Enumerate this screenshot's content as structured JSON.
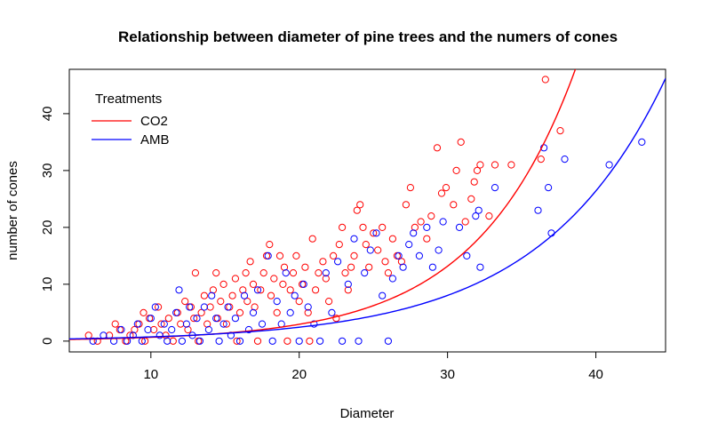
{
  "chart_data": {
    "type": "scatter",
    "title": "Relationship between diameter of pine trees and the numers of cones",
    "xlabel": "Diameter",
    "ylabel": "number of cones",
    "xlim": [
      4.5,
      44.7
    ],
    "ylim": [
      -1.9,
      47.8
    ],
    "xticks": [
      10,
      20,
      30,
      40
    ],
    "yticks": [
      0,
      10,
      20,
      30,
      40
    ],
    "legend": {
      "title": "Treatments",
      "position": "top-left",
      "entries": [
        {
          "label": "CO2",
          "color": "#ff0000"
        },
        {
          "label": "AMB",
          "color": "#0000ff"
        }
      ]
    },
    "grid": false,
    "series": [
      {
        "name": "CO2",
        "color": "#ff0000",
        "marker": "open-circle",
        "points": [
          [
            5.8,
            1
          ],
          [
            6.4,
            0
          ],
          [
            7.2,
            1
          ],
          [
            7.6,
            3
          ],
          [
            7.9,
            2
          ],
          [
            8.3,
            0
          ],
          [
            8.6,
            1
          ],
          [
            8.9,
            2
          ],
          [
            9.2,
            3
          ],
          [
            9.5,
            5
          ],
          [
            9.6,
            0
          ],
          [
            9.9,
            4
          ],
          [
            10.2,
            2
          ],
          [
            10.5,
            6
          ],
          [
            10.7,
            3
          ],
          [
            11.0,
            1
          ],
          [
            11.2,
            4
          ],
          [
            11.5,
            0
          ],
          [
            11.8,
            5
          ],
          [
            12.0,
            3
          ],
          [
            12.3,
            7
          ],
          [
            12.5,
            2
          ],
          [
            12.7,
            6
          ],
          [
            12.9,
            4
          ],
          [
            13.0,
            12
          ],
          [
            13.2,
            0
          ],
          [
            13.4,
            5
          ],
          [
            13.6,
            8
          ],
          [
            13.8,
            3
          ],
          [
            14.0,
            6
          ],
          [
            14.2,
            9
          ],
          [
            14.4,
            12
          ],
          [
            14.5,
            4
          ],
          [
            14.7,
            7
          ],
          [
            14.9,
            10
          ],
          [
            15.1,
            3
          ],
          [
            15.3,
            6
          ],
          [
            15.5,
            8
          ],
          [
            15.7,
            11
          ],
          [
            15.8,
            0
          ],
          [
            16.0,
            5
          ],
          [
            16.2,
            9
          ],
          [
            16.4,
            12
          ],
          [
            16.5,
            7
          ],
          [
            16.7,
            14
          ],
          [
            16.9,
            10
          ],
          [
            17.0,
            6
          ],
          [
            17.2,
            0
          ],
          [
            17.4,
            9
          ],
          [
            17.6,
            12
          ],
          [
            17.8,
            15
          ],
          [
            18.0,
            17
          ],
          [
            18.1,
            8
          ],
          [
            18.3,
            11
          ],
          [
            18.5,
            5
          ],
          [
            18.7,
            15
          ],
          [
            18.9,
            10
          ],
          [
            19.0,
            13
          ],
          [
            19.2,
            0
          ],
          [
            19.4,
            9
          ],
          [
            19.6,
            12
          ],
          [
            19.8,
            15
          ],
          [
            20.0,
            7
          ],
          [
            20.2,
            10
          ],
          [
            20.4,
            13
          ],
          [
            20.6,
            5
          ],
          [
            20.7,
            0
          ],
          [
            20.9,
            18
          ],
          [
            21.1,
            9
          ],
          [
            21.3,
            12
          ],
          [
            21.6,
            14
          ],
          [
            21.8,
            11
          ],
          [
            22.0,
            7
          ],
          [
            22.3,
            15
          ],
          [
            22.5,
            4
          ],
          [
            22.7,
            17
          ],
          [
            22.9,
            20
          ],
          [
            23.1,
            12
          ],
          [
            23.3,
            9
          ],
          [
            23.5,
            13
          ],
          [
            23.7,
            15
          ],
          [
            23.9,
            23
          ],
          [
            24.1,
            24
          ],
          [
            24.3,
            20
          ],
          [
            24.5,
            17
          ],
          [
            24.7,
            13
          ],
          [
            25.0,
            19
          ],
          [
            25.3,
            16
          ],
          [
            25.6,
            20
          ],
          [
            25.8,
            14
          ],
          [
            26.0,
            12
          ],
          [
            26.3,
            18
          ],
          [
            26.6,
            15
          ],
          [
            26.9,
            14
          ],
          [
            27.2,
            24
          ],
          [
            27.5,
            27
          ],
          [
            27.8,
            20
          ],
          [
            28.2,
            21
          ],
          [
            28.6,
            18
          ],
          [
            28.9,
            22
          ],
          [
            29.3,
            34
          ],
          [
            29.6,
            26
          ],
          [
            29.9,
            27
          ],
          [
            30.4,
            24
          ],
          [
            30.6,
            30
          ],
          [
            30.9,
            35
          ],
          [
            31.2,
            21
          ],
          [
            31.6,
            25
          ],
          [
            31.8,
            28
          ],
          [
            32.0,
            30
          ],
          [
            32.2,
            31
          ],
          [
            32.8,
            22
          ],
          [
            33.2,
            31
          ],
          [
            34.3,
            31
          ],
          [
            36.3,
            32
          ],
          [
            36.6,
            46
          ],
          [
            37.6,
            37
          ]
        ]
      },
      {
        "name": "AMB",
        "color": "#0000ff",
        "marker": "open-circle",
        "points": [
          [
            6.1,
            0
          ],
          [
            6.8,
            1
          ],
          [
            7.5,
            0
          ],
          [
            8.0,
            2
          ],
          [
            8.4,
            0
          ],
          [
            8.8,
            1
          ],
          [
            9.1,
            3
          ],
          [
            9.4,
            0
          ],
          [
            9.8,
            2
          ],
          [
            10.0,
            4
          ],
          [
            10.3,
            6
          ],
          [
            10.6,
            1
          ],
          [
            10.9,
            3
          ],
          [
            11.1,
            0
          ],
          [
            11.4,
            2
          ],
          [
            11.7,
            5
          ],
          [
            11.9,
            9
          ],
          [
            12.1,
            0
          ],
          [
            12.4,
            3
          ],
          [
            12.6,
            6
          ],
          [
            12.8,
            1
          ],
          [
            13.1,
            4
          ],
          [
            13.3,
            0
          ],
          [
            13.6,
            6
          ],
          [
            13.9,
            2
          ],
          [
            14.1,
            8
          ],
          [
            14.4,
            4
          ],
          [
            14.6,
            0
          ],
          [
            14.9,
            3
          ],
          [
            15.2,
            6
          ],
          [
            15.4,
            1
          ],
          [
            15.7,
            4
          ],
          [
            16.0,
            0
          ],
          [
            16.3,
            8
          ],
          [
            16.6,
            2
          ],
          [
            16.9,
            5
          ],
          [
            17.2,
            9
          ],
          [
            17.5,
            3
          ],
          [
            17.9,
            15
          ],
          [
            18.2,
            0
          ],
          [
            18.5,
            7
          ],
          [
            18.8,
            3
          ],
          [
            19.1,
            12
          ],
          [
            19.4,
            5
          ],
          [
            19.7,
            8
          ],
          [
            20.0,
            0
          ],
          [
            20.3,
            10
          ],
          [
            20.6,
            6
          ],
          [
            21.0,
            3
          ],
          [
            21.4,
            0
          ],
          [
            21.8,
            12
          ],
          [
            22.2,
            5
          ],
          [
            22.6,
            14
          ],
          [
            22.9,
            0
          ],
          [
            23.3,
            10
          ],
          [
            23.7,
            18
          ],
          [
            24.0,
            0
          ],
          [
            24.4,
            12
          ],
          [
            24.8,
            16
          ],
          [
            25.2,
            19
          ],
          [
            25.6,
            8
          ],
          [
            26.0,
            0
          ],
          [
            26.3,
            11
          ],
          [
            26.7,
            15
          ],
          [
            27.0,
            13
          ],
          [
            27.4,
            17
          ],
          [
            27.7,
            19
          ],
          [
            28.1,
            15
          ],
          [
            28.6,
            20
          ],
          [
            29.0,
            13
          ],
          [
            29.4,
            16
          ],
          [
            29.7,
            21
          ],
          [
            30.8,
            20
          ],
          [
            31.3,
            15
          ],
          [
            31.9,
            22
          ],
          [
            32.1,
            23
          ],
          [
            32.2,
            13
          ],
          [
            33.2,
            27
          ],
          [
            36.1,
            23
          ],
          [
            36.5,
            34
          ],
          [
            36.8,
            27
          ],
          [
            37.0,
            19
          ],
          [
            37.9,
            32
          ],
          [
            40.9,
            31
          ],
          [
            43.1,
            35
          ]
        ]
      }
    ],
    "fits": [
      {
        "name": "CO2",
        "color": "#ff0000",
        "type": "exponential",
        "a": 0.1486,
        "b": 0.1495
      },
      {
        "name": "AMB",
        "color": "#0000ff",
        "type": "exponential",
        "a": 0.2262,
        "b": 0.119
      }
    ]
  }
}
